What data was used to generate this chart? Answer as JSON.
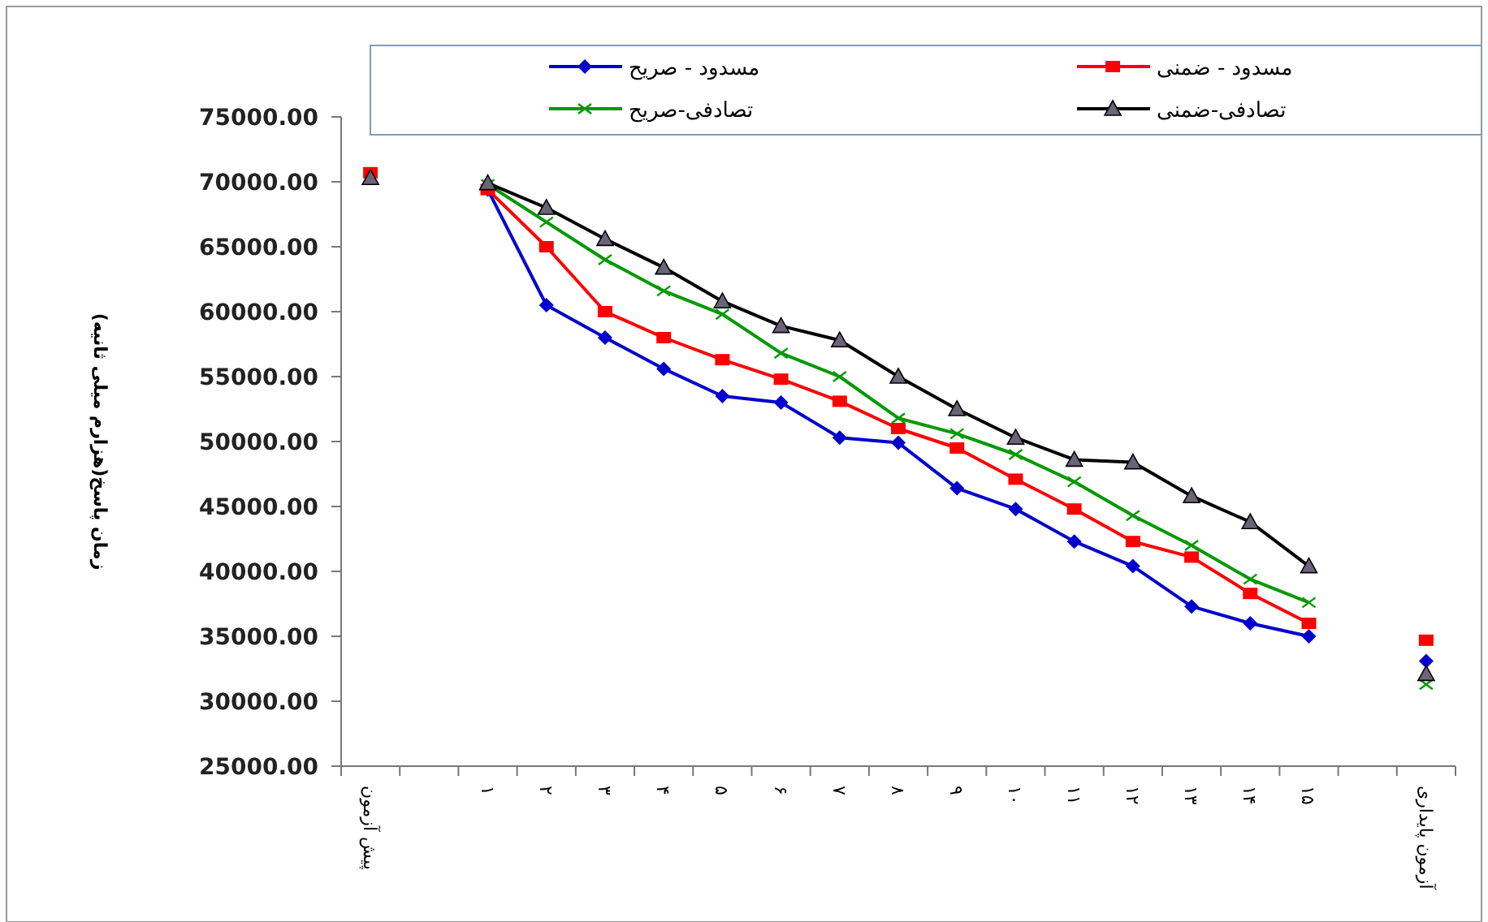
{
  "chart_data": {
    "type": "line",
    "ylabel": "زمان پاسخ(هزارم میلی ثانیه)",
    "categories": [
      "پیش آزمون",
      null,
      "۱",
      "۲",
      "۳",
      "۴",
      "۵",
      "۶",
      "۷",
      "۸",
      "۹",
      "۱۰",
      "۱۱",
      "۱۲",
      "۱۳",
      "۱۴",
      "۱۵",
      null,
      "آزمون پایداری"
    ],
    "series": [
      {
        "name": "مسدود - صریح",
        "color": "#0000cc",
        "marker": "diamond",
        "values": [
          null,
          null,
          69400,
          60500,
          58000,
          55600,
          53500,
          53000,
          50300,
          49900,
          46400,
          44800,
          42300,
          40400,
          37300,
          36000,
          35000,
          null,
          33100
        ]
      },
      {
        "name": "مسدود - ضمنی",
        "color": "#ff0000",
        "marker": "square",
        "values": [
          70700,
          null,
          69400,
          65000,
          60000,
          58000,
          56300,
          54800,
          53100,
          51000,
          49500,
          47100,
          44800,
          42300,
          41100,
          38300,
          36000,
          null,
          34700
        ]
      },
      {
        "name": "تصادفی-صریح",
        "color": "#009900",
        "marker": "cross",
        "values": [
          null,
          null,
          69800,
          66900,
          64000,
          61600,
          59800,
          56800,
          55000,
          51800,
          50600,
          49000,
          46900,
          44300,
          42000,
          39400,
          37600,
          null,
          31300
        ]
      },
      {
        "name": "تصادفی-ضمنی",
        "color": "#000000",
        "marker": "triangle",
        "values": [
          70300,
          null,
          69900,
          68000,
          65600,
          63400,
          60800,
          58900,
          57800,
          55000,
          52500,
          50300,
          48600,
          48400,
          45800,
          43800,
          40400,
          null,
          32100
        ]
      }
    ],
    "ylim": [
      25000,
      75000
    ],
    "yticks": [
      {
        "value": 25000,
        "label": "25000.00"
      },
      {
        "value": 30000,
        "label": "30000.00"
      },
      {
        "value": 35000,
        "label": "35000.00"
      },
      {
        "value": 40000,
        "label": "40000.00"
      },
      {
        "value": 45000,
        "label": "45000.00"
      },
      {
        "value": 50000,
        "label": "50000.00"
      },
      {
        "value": 55000,
        "label": "55000.00"
      },
      {
        "value": 60000,
        "label": "60000.00"
      },
      {
        "value": 65000,
        "label": "65000.00"
      },
      {
        "value": 70000,
        "label": "70000.00"
      },
      {
        "value": 75000,
        "label": "75000.00"
      }
    ],
    "legend": "top"
  }
}
